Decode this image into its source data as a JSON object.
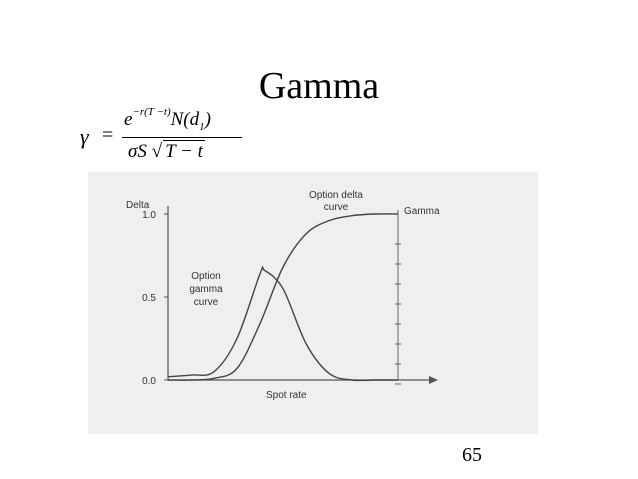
{
  "slide": {
    "title": "Gamma",
    "page_number": "65"
  },
  "formula": {
    "lhs": "γ",
    "equals": "=",
    "numerator_base": "e",
    "numerator_exponent": "−r(T −t)",
    "numerator_term": "N(d",
    "numerator_subscript": "1",
    "numerator_close": ")",
    "denominator_prefix": "σS",
    "sqrt_symbol": "√",
    "denominator_radicand": "T − t"
  },
  "chart_data": {
    "type": "line",
    "ylabel": "Delta",
    "xlabel": "Spot rate",
    "ylim": [
      0,
      1.0
    ],
    "yticks": [
      "0.0",
      "0.5",
      "1.0"
    ],
    "grid": false,
    "series": [
      {
        "name": "Option delta curve",
        "x": [
          0.0,
          0.1,
          0.2,
          0.3,
          0.4,
          0.5,
          0.6,
          0.7,
          0.8,
          0.9,
          1.0
        ],
        "y": [
          0.0,
          0.0,
          0.01,
          0.07,
          0.34,
          0.68,
          0.88,
          0.96,
          0.99,
          1.0,
          1.0
        ]
      },
      {
        "name": "Option gamma curve",
        "x": [
          0.0,
          0.1,
          0.2,
          0.3,
          0.4,
          0.42,
          0.5,
          0.6,
          0.7,
          0.8,
          0.9,
          1.0
        ],
        "y": [
          0.02,
          0.03,
          0.05,
          0.25,
          0.64,
          0.66,
          0.55,
          0.22,
          0.04,
          0.0,
          0.0,
          0.0
        ]
      }
    ],
    "annotations": [
      {
        "text": "Option delta",
        "line2": "curve"
      },
      {
        "text": "Option",
        "line2": "gamma",
        "line3": "curve"
      },
      {
        "text": "Gamma"
      }
    ]
  }
}
